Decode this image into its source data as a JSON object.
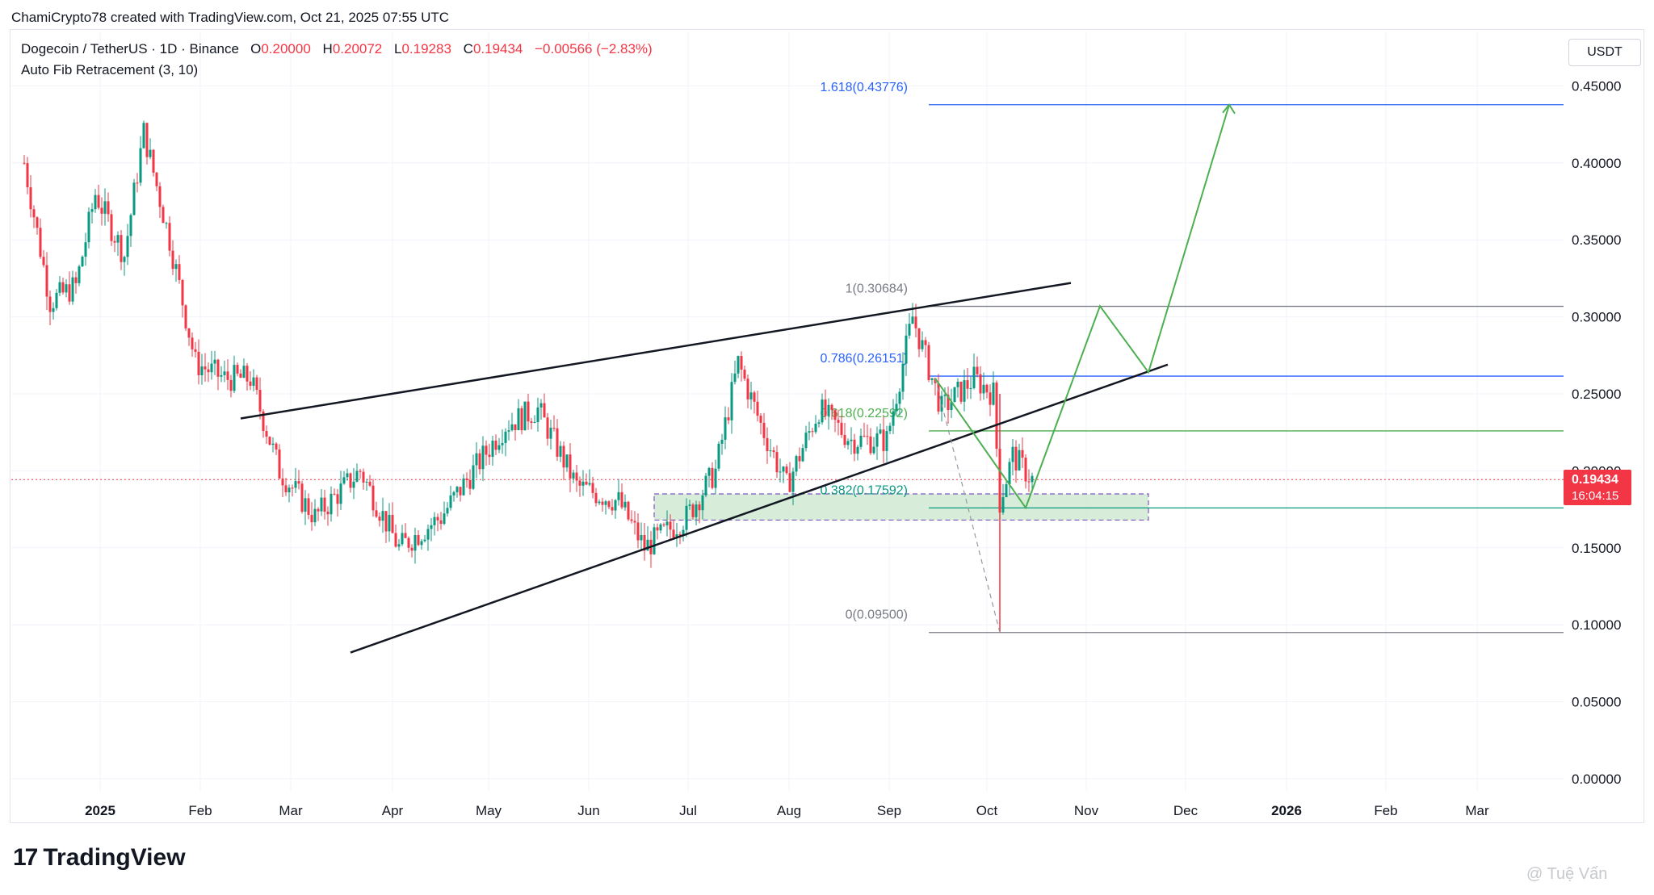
{
  "header": {
    "attribution": "ChamiCrypto78 created with TradingView.com, Oct 21, 2025 07:55 UTC"
  },
  "legend": {
    "symbol": "Dogecoin / TetherUS · 1D · Binance",
    "open_label": "O",
    "open": "0.20000",
    "high_label": "H",
    "high": "0.20072",
    "low_label": "L",
    "low": "0.19283",
    "close_label": "C",
    "close": "0.19434",
    "change": "−0.00566 (−2.83%)",
    "indicator": "Auto Fib Retracement (3, 10)"
  },
  "currency_button": "USDT",
  "last_price": {
    "value": "0.19434",
    "countdown": "16:04:15"
  },
  "brand": "TradingView",
  "watermark": "@ Tuệ Vấn",
  "colors": {
    "up": "#089981",
    "down": "#f23645",
    "fib_top": "#787b86",
    "fib_786": "#2962ff",
    "fib_618": "#4caf50",
    "fib_382": "#089981",
    "projection": "#4caf50",
    "zone": "#c8e6c9"
  },
  "chart_data": {
    "type": "candlestick",
    "ylim": [
      -0.01,
      0.48
    ],
    "y_ticks": [
      "0.45000",
      "0.40000",
      "0.35000",
      "0.30000",
      "0.25000",
      "0.20000",
      "0.15000",
      "0.10000",
      "0.05000",
      "0.00000"
    ],
    "x_ticks": [
      "2025",
      "Feb",
      "Mar",
      "Apr",
      "May",
      "Jun",
      "Jul",
      "Aug",
      "Sep",
      "Oct",
      "Nov",
      "Dec",
      "2026",
      "Feb",
      "Mar"
    ],
    "price_path": [
      [
        "2024-12-12",
        0.4
      ],
      [
        "2024-12-20",
        0.31
      ],
      [
        "2024-12-28",
        0.32
      ],
      [
        "2025-01-03",
        0.38
      ],
      [
        "2025-01-12",
        0.34
      ],
      [
        "2025-01-18",
        0.42
      ],
      [
        "2025-01-26",
        0.35
      ],
      [
        "2025-02-03",
        0.27
      ],
      [
        "2025-02-12",
        0.26
      ],
      [
        "2025-02-20",
        0.26
      ],
      [
        "2025-03-01",
        0.2
      ],
      [
        "2025-03-12",
        0.17
      ],
      [
        "2025-03-26",
        0.2
      ],
      [
        "2025-04-07",
        0.15
      ],
      [
        "2025-04-20",
        0.17
      ],
      [
        "2025-05-10",
        0.23
      ],
      [
        "2025-05-20",
        0.24
      ],
      [
        "2025-06-01",
        0.19
      ],
      [
        "2025-06-14",
        0.18
      ],
      [
        "2025-06-22",
        0.15
      ],
      [
        "2025-07-05",
        0.17
      ],
      [
        "2025-07-14",
        0.2
      ],
      [
        "2025-07-21",
        0.27
      ],
      [
        "2025-07-28",
        0.23
      ],
      [
        "2025-08-05",
        0.19
      ],
      [
        "2025-08-15",
        0.24
      ],
      [
        "2025-08-25",
        0.22
      ],
      [
        "2025-09-05",
        0.22
      ],
      [
        "2025-09-13",
        0.3
      ],
      [
        "2025-09-22",
        0.24
      ],
      [
        "2025-10-02",
        0.26
      ],
      [
        "2025-10-08",
        0.25
      ],
      [
        "2025-10-10",
        0.18
      ],
      [
        "2025-10-14",
        0.21
      ],
      [
        "2025-10-20",
        0.19434
      ]
    ],
    "fib_levels": [
      {
        "label": "1.618(0.43776)",
        "value": 0.43776
      },
      {
        "label": "1(0.30684)",
        "value": 0.30684
      },
      {
        "label": "0.786(0.26151)",
        "value": 0.26151
      },
      {
        "label": "0.618(0.22592)",
        "value": 0.22592
      },
      {
        "label": "0.382(0.17592)",
        "value": 0.17592
      },
      {
        "label": "0(0.09500)",
        "value": 0.095
      }
    ],
    "trendlines": [
      {
        "name": "upper",
        "from": [
          "2025-02-17",
          0.234
        ],
        "to": [
          "2025-11-01",
          0.322
        ]
      },
      {
        "name": "lower",
        "from": [
          "2025-03-23",
          0.082
        ],
        "to": [
          "2025-12-01",
          0.269
        ]
      }
    ],
    "projection": [
      [
        "2025-09-20",
        0.26
      ],
      [
        "2025-10-18",
        0.176
      ],
      [
        "2025-11-10",
        0.307
      ],
      [
        "2025-11-25",
        0.264
      ],
      [
        "2025-12-20",
        0.43776
      ]
    ],
    "demand_zone": {
      "from": "2025-06-25",
      "to": "2025-11-25",
      "top": 0.185,
      "bottom": 0.168
    }
  }
}
